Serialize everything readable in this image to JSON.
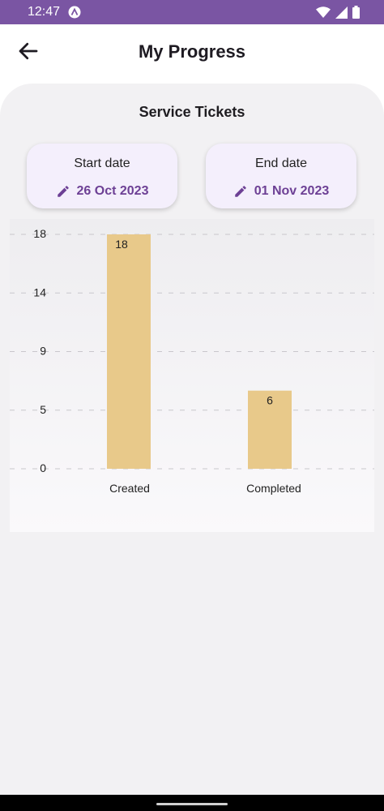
{
  "status": {
    "time": "12:47"
  },
  "header": {
    "title": "My Progress"
  },
  "section": {
    "title": "Service Tickets"
  },
  "dates": {
    "start": {
      "label": "Start date",
      "value": "26 Oct 2023"
    },
    "end": {
      "label": "End date",
      "value": "01 Nov 2023"
    }
  },
  "colors": {
    "accent": "#6d4095",
    "bar": "#e8c98a",
    "statusbar": "#7a55a3"
  },
  "chart_data": {
    "type": "bar",
    "categories": [
      "Created",
      "Completed"
    ],
    "values": [
      18,
      6
    ],
    "y_ticks": [
      "0",
      "5",
      "9",
      "14",
      "18"
    ],
    "ylim": [
      0,
      18
    ],
    "grid": true,
    "title": "",
    "xlabel": "",
    "ylabel": ""
  }
}
